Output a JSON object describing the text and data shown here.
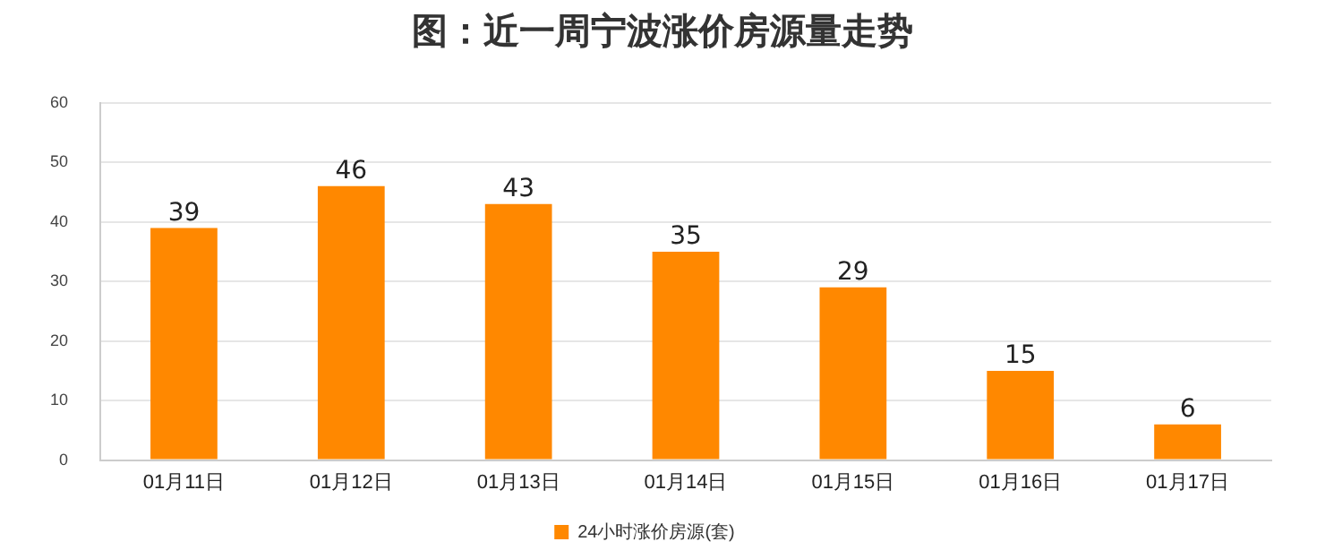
{
  "chart_data": {
    "type": "bar",
    "title": "图：近一周宁波涨价房源量走势",
    "categories": [
      "01月11日",
      "01月12日",
      "01月13日",
      "01月14日",
      "01月15日",
      "01月16日",
      "01月17日"
    ],
    "series": [
      {
        "name": "24小时涨价房源(套)",
        "color": "#ff8800",
        "values": [
          39,
          46,
          43,
          35,
          29,
          15,
          6
        ]
      }
    ],
    "ylim": [
      0,
      60
    ],
    "yticks": [
      0,
      10,
      20,
      30,
      40,
      50,
      60
    ],
    "grid": "y",
    "legend": "bottom",
    "data_labels": true
  }
}
